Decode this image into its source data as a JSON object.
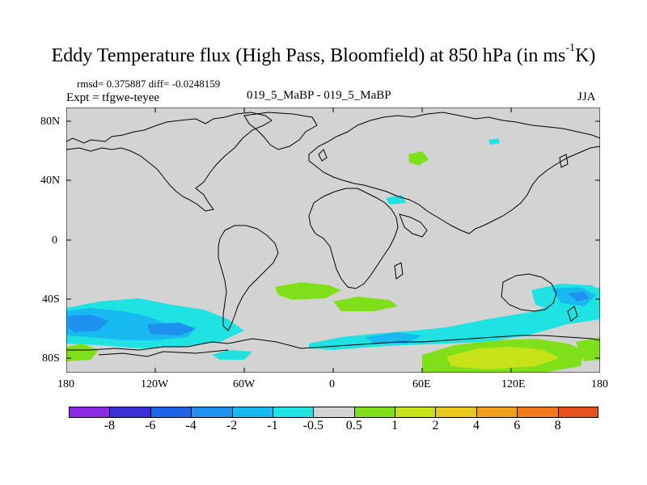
{
  "title": {
    "main": "Eddy Temperature flux (High Pass, Bloomfield) at 850 hPa (in ms",
    "sup": "-1",
    "unit_tail": "K)"
  },
  "stats": {
    "rmsd_diff": "rmsd= 0.375887 diff= -0.0248159",
    "expt": "Expt = tfgwe-teyee",
    "comparison": "019_5_MaBP - 019_5_MaBP",
    "season": "JJA"
  },
  "map": {
    "background_color": "#d3d3d3",
    "lat_ticks": [
      "80N",
      "40N",
      "0",
      "40S",
      "80S"
    ],
    "lon_ticks": [
      "180",
      "120W",
      "60W",
      "0",
      "60E",
      "120E",
      "180"
    ]
  },
  "colorbar": {
    "colors": [
      "#8a2be2",
      "#3a2fd6",
      "#1e64e6",
      "#1e90ee",
      "#17b9f0",
      "#1fe3e3",
      "#d3d3d3",
      "#7fe01a",
      "#c8e21a",
      "#e8c81a",
      "#f0a01a",
      "#f07a1a",
      "#e8501a"
    ],
    "labels": [
      "-8",
      "-6",
      "-4",
      "-2",
      "-1",
      "-0.5",
      "0.5",
      "1",
      "2",
      "4",
      "6",
      "8"
    ]
  }
}
